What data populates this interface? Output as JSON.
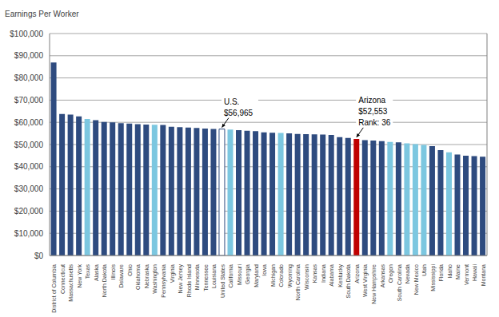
{
  "chart_data": {
    "type": "bar",
    "y_label": "Earnings Per Worker",
    "categories": [
      "District of Columbia",
      "Connecticut",
      "Massachusetts",
      "New York",
      "Texas",
      "Alaska",
      "North Dakota",
      "Illinois",
      "Delaware",
      "Ohio",
      "Oklahoma",
      "Nebraska",
      "Washington",
      "Pennsylvania",
      "Virginia",
      "New Jersey",
      "Rhode Island",
      "Minnesota",
      "Tennessee",
      "Louisiana",
      "United States",
      "California",
      "Missouri",
      "Georgia",
      "Maryland",
      "Iowa",
      "Michigan",
      "Colorado",
      "Wyoming",
      "North Carolina",
      "Wisconsin",
      "Kansas",
      "Indiana",
      "Alabama",
      "Kentucky",
      "South Dakota",
      "Arizona",
      "West Virginia",
      "New Hampshire",
      "Arkansas",
      "Oregon",
      "South Carolina",
      "Nevada",
      "New Mexico",
      "Utah",
      "Mississippi",
      "Florida",
      "Idaho",
      "Maine",
      "Vermont",
      "Hawaii",
      "Montana"
    ],
    "values": [
      87000,
      63800,
      63500,
      62700,
      61500,
      61000,
      60200,
      60000,
      59600,
      59400,
      59200,
      59000,
      58900,
      58800,
      58000,
      57800,
      57600,
      57500,
      57200,
      57000,
      56965,
      56700,
      56500,
      56200,
      56000,
      55500,
      55300,
      55200,
      55000,
      54800,
      54700,
      54600,
      54500,
      54300,
      53300,
      53000,
      52553,
      52000,
      51800,
      51500,
      51200,
      51000,
      50500,
      50200,
      49800,
      49300,
      47500,
      46500,
      45500,
      45000,
      44800,
      44500
    ],
    "colors": [
      "#2e4b7f",
      "#2e4b7f",
      "#2e4b7f",
      "#2e4b7f",
      "#7cc7e0",
      "#2e4b7f",
      "#2e4b7f",
      "#2e4b7f",
      "#2e4b7f",
      "#2e4b7f",
      "#2e4b7f",
      "#2e4b7f",
      "#7cc7e0",
      "#2e4b7f",
      "#2e4b7f",
      "#2e4b7f",
      "#2e4b7f",
      "#2e4b7f",
      "#2e4b7f",
      "#2e4b7f",
      "#ffffff",
      "#7cc7e0",
      "#2e4b7f",
      "#2e4b7f",
      "#2e4b7f",
      "#2e4b7f",
      "#2e4b7f",
      "#7cc7e0",
      "#2e4b7f",
      "#2e4b7f",
      "#2e4b7f",
      "#2e4b7f",
      "#2e4b7f",
      "#2e4b7f",
      "#2e4b7f",
      "#2e4b7f",
      "#c00000",
      "#2e4b7f",
      "#2e4b7f",
      "#2e4b7f",
      "#7cc7e0",
      "#2e4b7f",
      "#7cc7e0",
      "#7cc7e0",
      "#7cc7e0",
      "#2e4b7f",
      "#2e4b7f",
      "#7cc7e0",
      "#2e4b7f",
      "#2e4b7f",
      "#2e4b7f",
      "#2e4b7f"
    ],
    "ylim": [
      0,
      100000
    ],
    "yticks": [
      {
        "value": 0,
        "label": "$0"
      },
      {
        "value": 10000,
        "label": "$10,000"
      },
      {
        "value": 20000,
        "label": "$20,000"
      },
      {
        "value": 30000,
        "label": "$30,000"
      },
      {
        "value": 40000,
        "label": "$40,000"
      },
      {
        "value": 50000,
        "label": "$50,000"
      },
      {
        "value": 60000,
        "label": "$60,000"
      },
      {
        "value": 70000,
        "label": "$70,000"
      },
      {
        "value": 80000,
        "label": "$80,000"
      },
      {
        "value": 90000,
        "label": "$90,000"
      },
      {
        "value": 100000,
        "label": "$100,000"
      }
    ],
    "grid": true,
    "annotations": [
      {
        "text": [
          "U.S.",
          "$56,965"
        ],
        "category": "United States"
      },
      {
        "text": [
          "Arizona",
          "$52,553",
          "Rank: 36"
        ],
        "category": "Arizona"
      }
    ]
  }
}
